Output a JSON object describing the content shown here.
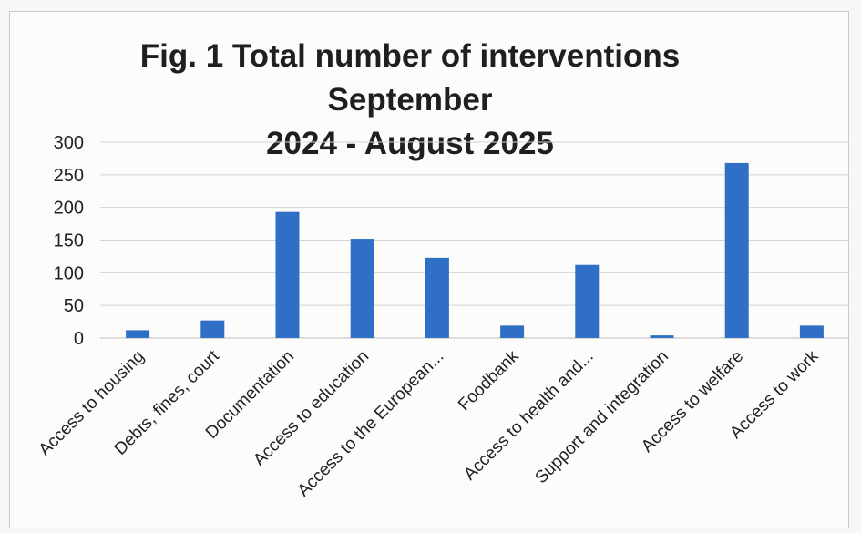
{
  "chart_data": {
    "type": "bar",
    "title_line1": "Fig. 1 Total number of interventions September",
    "title_line2": "2024 - August 2025",
    "categories": [
      "Access to housing",
      "Debts, fines, court",
      "Documentation",
      "Access to education",
      "Access to the European...",
      "Foodbank",
      "Access to health and...",
      "Support and integration",
      "Access to welfare",
      "Access to work"
    ],
    "values": [
      12,
      27,
      193,
      152,
      123,
      19,
      112,
      4,
      268,
      19
    ],
    "ylim": [
      0,
      300
    ],
    "yticks": [
      0,
      50,
      100,
      150,
      200,
      250,
      300
    ],
    "grid": true,
    "bar_color": "#2f6fc6"
  }
}
